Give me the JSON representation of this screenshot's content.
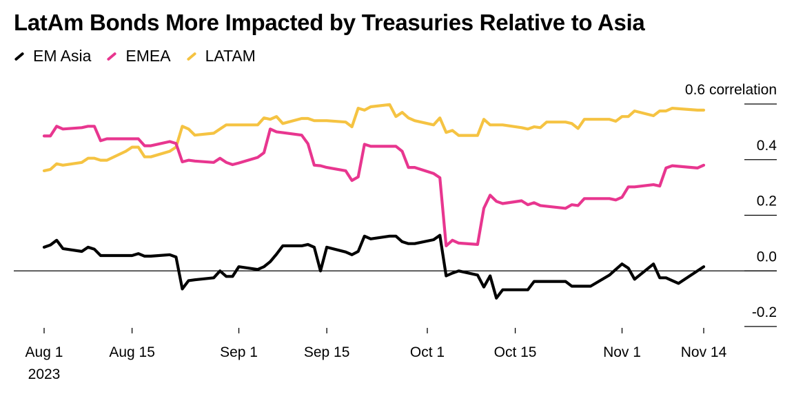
{
  "title": "LatAm Bonds More Impacted by Treasuries Relative to Asia",
  "colors": {
    "em_asia": "#000000",
    "emea": "#e8368f",
    "latam": "#f5c342",
    "zero_line": "#000000"
  },
  "chart_data": {
    "type": "line",
    "title": "LatAm Bonds More Impacted by Treasuries Relative to Asia",
    "xlabel": "",
    "ylabel": "",
    "y_unit_label": "correlation",
    "ylim": [
      -0.2,
      0.6
    ],
    "yticks": [
      {
        "value": 0.6,
        "label": "0.6 correlation"
      },
      {
        "value": 0.4,
        "label": "0.4"
      },
      {
        "value": 0.2,
        "label": "0.2"
      },
      {
        "value": 0.0,
        "label": "0.0"
      },
      {
        "value": -0.2,
        "label": "-0.2"
      }
    ],
    "xlim": [
      "2023-08-01",
      "2023-11-14"
    ],
    "xticks": [
      {
        "date": "2023-08-01",
        "label": "Aug 1",
        "sublabel": "2023"
      },
      {
        "date": "2023-08-15",
        "label": "Aug 15"
      },
      {
        "date": "2023-09-01",
        "label": "Sep 1"
      },
      {
        "date": "2023-09-15",
        "label": "Sep 15"
      },
      {
        "date": "2023-10-01",
        "label": "Oct 1"
      },
      {
        "date": "2023-10-15",
        "label": "Oct 15"
      },
      {
        "date": "2023-11-01",
        "label": "Nov 1"
      },
      {
        "date": "2023-11-14",
        "label": "Nov 14"
      }
    ],
    "legend_position": "top-left",
    "grid": false,
    "series": [
      {
        "name": "EM Asia",
        "color": "#000000",
        "points": [
          [
            "2023-08-01",
            0.085
          ],
          [
            "2023-08-02",
            0.093
          ],
          [
            "2023-08-03",
            0.11
          ],
          [
            "2023-08-04",
            0.08
          ],
          [
            "2023-08-07",
            0.07
          ],
          [
            "2023-08-08",
            0.085
          ],
          [
            "2023-08-09",
            0.078
          ],
          [
            "2023-08-10",
            0.055
          ],
          [
            "2023-08-11",
            0.055
          ],
          [
            "2023-08-14",
            0.055
          ],
          [
            "2023-08-15",
            0.055
          ],
          [
            "2023-08-16",
            0.062
          ],
          [
            "2023-08-17",
            0.053
          ],
          [
            "2023-08-18",
            0.053
          ],
          [
            "2023-08-21",
            0.058
          ],
          [
            "2023-08-22",
            0.05
          ],
          [
            "2023-08-23",
            -0.065
          ],
          [
            "2023-08-24",
            -0.035
          ],
          [
            "2023-08-25",
            -0.032
          ],
          [
            "2023-08-28",
            -0.025
          ],
          [
            "2023-08-29",
            0.0
          ],
          [
            "2023-08-30",
            -0.02
          ],
          [
            "2023-08-31",
            -0.02
          ],
          [
            "2023-09-01",
            0.015
          ],
          [
            "2023-09-04",
            0.005
          ],
          [
            "2023-09-05",
            0.015
          ],
          [
            "2023-09-06",
            0.033
          ],
          [
            "2023-09-07",
            0.06
          ],
          [
            "2023-09-08",
            0.09
          ],
          [
            "2023-09-11",
            0.09
          ],
          [
            "2023-09-12",
            0.095
          ],
          [
            "2023-09-13",
            0.085
          ],
          [
            "2023-09-14",
            0.0
          ],
          [
            "2023-09-15",
            0.085
          ],
          [
            "2023-09-18",
            0.068
          ],
          [
            "2023-09-19",
            0.058
          ],
          [
            "2023-09-20",
            0.07
          ],
          [
            "2023-09-21",
            0.125
          ],
          [
            "2023-09-22",
            0.115
          ],
          [
            "2023-09-25",
            0.125
          ],
          [
            "2023-09-26",
            0.125
          ],
          [
            "2023-09-27",
            0.105
          ],
          [
            "2023-09-28",
            0.098
          ],
          [
            "2023-09-29",
            0.098
          ],
          [
            "2023-10-02",
            0.112
          ],
          [
            "2023-10-03",
            0.128
          ],
          [
            "2023-10-04",
            -0.018
          ],
          [
            "2023-10-05",
            -0.008
          ],
          [
            "2023-10-06",
            0.0
          ],
          [
            "2023-10-09",
            -0.015
          ],
          [
            "2023-10-10",
            -0.058
          ],
          [
            "2023-10-11",
            -0.018
          ],
          [
            "2023-10-12",
            -0.098
          ],
          [
            "2023-10-13",
            -0.068
          ],
          [
            "2023-10-16",
            -0.068
          ],
          [
            "2023-10-17",
            -0.068
          ],
          [
            "2023-10-18",
            -0.038
          ],
          [
            "2023-10-23",
            -0.038
          ],
          [
            "2023-10-24",
            -0.055
          ],
          [
            "2023-10-27",
            -0.055
          ],
          [
            "2023-10-30",
            -0.015
          ],
          [
            "2023-10-31",
            0.005
          ],
          [
            "2023-11-01",
            0.025
          ],
          [
            "2023-11-02",
            0.01
          ],
          [
            "2023-11-03",
            -0.03
          ],
          [
            "2023-11-06",
            0.025
          ],
          [
            "2023-11-07",
            -0.025
          ],
          [
            "2023-11-08",
            -0.025
          ],
          [
            "2023-11-09",
            -0.035
          ],
          [
            "2023-11-10",
            -0.045
          ],
          [
            "2023-11-14",
            0.015
          ]
        ]
      },
      {
        "name": "EMEA",
        "color": "#e8368f",
        "points": [
          [
            "2023-08-01",
            0.485
          ],
          [
            "2023-08-02",
            0.485
          ],
          [
            "2023-08-03",
            0.52
          ],
          [
            "2023-08-04",
            0.51
          ],
          [
            "2023-08-07",
            0.515
          ],
          [
            "2023-08-08",
            0.52
          ],
          [
            "2023-08-09",
            0.52
          ],
          [
            "2023-08-10",
            0.468
          ],
          [
            "2023-08-11",
            0.475
          ],
          [
            "2023-08-14",
            0.475
          ],
          [
            "2023-08-15",
            0.475
          ],
          [
            "2023-08-16",
            0.475
          ],
          [
            "2023-08-17",
            0.45
          ],
          [
            "2023-08-18",
            0.45
          ],
          [
            "2023-08-21",
            0.465
          ],
          [
            "2023-08-22",
            0.458
          ],
          [
            "2023-08-23",
            0.392
          ],
          [
            "2023-08-24",
            0.398
          ],
          [
            "2023-08-25",
            0.395
          ],
          [
            "2023-08-28",
            0.39
          ],
          [
            "2023-08-29",
            0.405
          ],
          [
            "2023-08-30",
            0.39
          ],
          [
            "2023-08-31",
            0.382
          ],
          [
            "2023-09-01",
            0.388
          ],
          [
            "2023-09-04",
            0.408
          ],
          [
            "2023-09-05",
            0.425
          ],
          [
            "2023-09-06",
            0.51
          ],
          [
            "2023-09-07",
            0.5
          ],
          [
            "2023-09-08",
            0.497
          ],
          [
            "2023-09-11",
            0.488
          ],
          [
            "2023-09-12",
            0.457
          ],
          [
            "2023-09-13",
            0.38
          ],
          [
            "2023-09-14",
            0.378
          ],
          [
            "2023-09-15",
            0.372
          ],
          [
            "2023-09-18",
            0.36
          ],
          [
            "2023-09-19",
            0.325
          ],
          [
            "2023-09-20",
            0.338
          ],
          [
            "2023-09-21",
            0.455
          ],
          [
            "2023-09-22",
            0.448
          ],
          [
            "2023-09-25",
            0.448
          ],
          [
            "2023-09-26",
            0.448
          ],
          [
            "2023-09-27",
            0.43
          ],
          [
            "2023-09-28",
            0.372
          ],
          [
            "2023-09-29",
            0.372
          ],
          [
            "2023-10-02",
            0.35
          ],
          [
            "2023-10-03",
            0.335
          ],
          [
            "2023-10-04",
            0.09
          ],
          [
            "2023-10-05",
            0.11
          ],
          [
            "2023-10-06",
            0.1
          ],
          [
            "2023-10-09",
            0.095
          ],
          [
            "2023-10-10",
            0.225
          ],
          [
            "2023-10-11",
            0.272
          ],
          [
            "2023-10-12",
            0.25
          ],
          [
            "2023-10-13",
            0.242
          ],
          [
            "2023-10-16",
            0.252
          ],
          [
            "2023-10-17",
            0.238
          ],
          [
            "2023-10-18",
            0.245
          ],
          [
            "2023-10-19",
            0.235
          ],
          [
            "2023-10-23",
            0.225
          ],
          [
            "2023-10-24",
            0.238
          ],
          [
            "2023-10-25",
            0.235
          ],
          [
            "2023-10-26",
            0.26
          ],
          [
            "2023-10-27",
            0.26
          ],
          [
            "2023-10-30",
            0.26
          ],
          [
            "2023-10-31",
            0.255
          ],
          [
            "2023-11-01",
            0.265
          ],
          [
            "2023-11-02",
            0.302
          ],
          [
            "2023-11-03",
            0.302
          ],
          [
            "2023-11-06",
            0.31
          ],
          [
            "2023-11-07",
            0.305
          ],
          [
            "2023-11-08",
            0.37
          ],
          [
            "2023-11-09",
            0.378
          ],
          [
            "2023-11-13",
            0.37
          ],
          [
            "2023-11-14",
            0.38
          ]
        ]
      },
      {
        "name": "LATAM",
        "color": "#f5c342",
        "points": [
          [
            "2023-08-01",
            0.36
          ],
          [
            "2023-08-02",
            0.365
          ],
          [
            "2023-08-03",
            0.385
          ],
          [
            "2023-08-04",
            0.38
          ],
          [
            "2023-08-07",
            0.39
          ],
          [
            "2023-08-08",
            0.405
          ],
          [
            "2023-08-09",
            0.405
          ],
          [
            "2023-08-10",
            0.398
          ],
          [
            "2023-08-11",
            0.398
          ],
          [
            "2023-08-14",
            0.43
          ],
          [
            "2023-08-15",
            0.445
          ],
          [
            "2023-08-16",
            0.445
          ],
          [
            "2023-08-17",
            0.41
          ],
          [
            "2023-08-18",
            0.41
          ],
          [
            "2023-08-21",
            0.43
          ],
          [
            "2023-08-22",
            0.445
          ],
          [
            "2023-08-23",
            0.52
          ],
          [
            "2023-08-24",
            0.51
          ],
          [
            "2023-08-25",
            0.488
          ],
          [
            "2023-08-28",
            0.495
          ],
          [
            "2023-08-29",
            0.51
          ],
          [
            "2023-08-30",
            0.525
          ],
          [
            "2023-08-31",
            0.525
          ],
          [
            "2023-09-01",
            0.525
          ],
          [
            "2023-09-04",
            0.525
          ],
          [
            "2023-09-05",
            0.55
          ],
          [
            "2023-09-06",
            0.545
          ],
          [
            "2023-09-07",
            0.555
          ],
          [
            "2023-09-08",
            0.53
          ],
          [
            "2023-09-11",
            0.548
          ],
          [
            "2023-09-12",
            0.548
          ],
          [
            "2023-09-13",
            0.54
          ],
          [
            "2023-09-15",
            0.54
          ],
          [
            "2023-09-18",
            0.535
          ],
          [
            "2023-09-19",
            0.518
          ],
          [
            "2023-09-20",
            0.585
          ],
          [
            "2023-09-21",
            0.578
          ],
          [
            "2023-09-22",
            0.59
          ],
          [
            "2023-09-25",
            0.598
          ],
          [
            "2023-09-26",
            0.555
          ],
          [
            "2023-09-27",
            0.57
          ],
          [
            "2023-09-28",
            0.55
          ],
          [
            "2023-09-29",
            0.54
          ],
          [
            "2023-10-02",
            0.525
          ],
          [
            "2023-10-03",
            0.55
          ],
          [
            "2023-10-04",
            0.498
          ],
          [
            "2023-10-05",
            0.505
          ],
          [
            "2023-10-06",
            0.487
          ],
          [
            "2023-10-09",
            0.487
          ],
          [
            "2023-10-10",
            0.545
          ],
          [
            "2023-10-11",
            0.525
          ],
          [
            "2023-10-13",
            0.525
          ],
          [
            "2023-10-16",
            0.515
          ],
          [
            "2023-10-17",
            0.51
          ],
          [
            "2023-10-18",
            0.518
          ],
          [
            "2023-10-19",
            0.515
          ],
          [
            "2023-10-20",
            0.535
          ],
          [
            "2023-10-23",
            0.535
          ],
          [
            "2023-10-24",
            0.53
          ],
          [
            "2023-10-25",
            0.512
          ],
          [
            "2023-10-26",
            0.545
          ],
          [
            "2023-10-27",
            0.545
          ],
          [
            "2023-10-30",
            0.545
          ],
          [
            "2023-10-31",
            0.538
          ],
          [
            "2023-11-01",
            0.555
          ],
          [
            "2023-11-02",
            0.555
          ],
          [
            "2023-11-03",
            0.575
          ],
          [
            "2023-11-06",
            0.558
          ],
          [
            "2023-11-07",
            0.575
          ],
          [
            "2023-11-08",
            0.575
          ],
          [
            "2023-11-09",
            0.585
          ],
          [
            "2023-11-13",
            0.578
          ],
          [
            "2023-11-14",
            0.578
          ]
        ]
      }
    ]
  }
}
